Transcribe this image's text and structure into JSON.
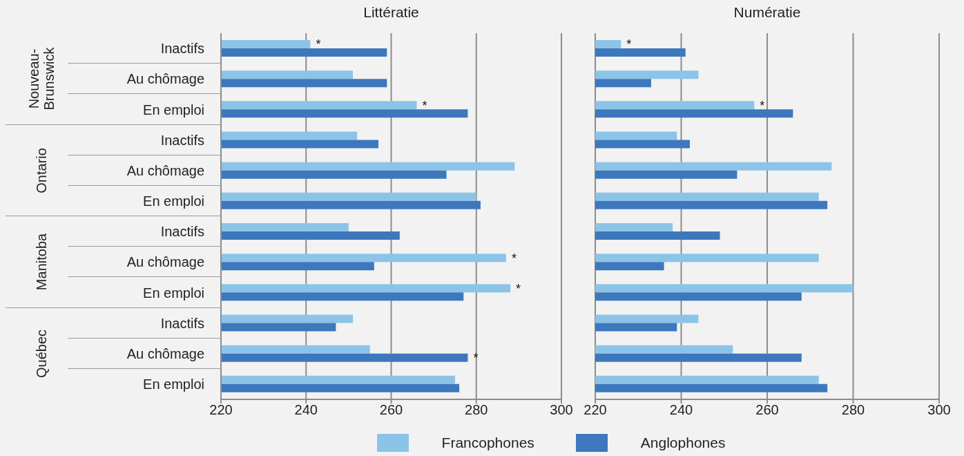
{
  "chart_data": [
    {
      "type": "bar",
      "orientation": "horizontal",
      "title": "Littératie",
      "categories": [
        "Inactifs",
        "Au chômage",
        "En emploi",
        "Inactifs",
        "Au chômage",
        "En emploi",
        "Inactifs",
        "Au chômage",
        "En emploi",
        "Inactifs",
        "Au chômage",
        "En emploi"
      ],
      "series": [
        {
          "name": "Francophones",
          "color": "#8cc4e8",
          "values": [
            241,
            251,
            266,
            252,
            289,
            280,
            250,
            287,
            288,
            251,
            255,
            275
          ],
          "value_labels": [
            "*",
            null,
            "*",
            null,
            null,
            null,
            null,
            "*",
            "*",
            null,
            null,
            null
          ]
        },
        {
          "name": "Anglophones",
          "color": "#3d78bd",
          "values": [
            259,
            259,
            278,
            257,
            273,
            281,
            262,
            256,
            277,
            247,
            278,
            276
          ],
          "value_labels": [
            null,
            null,
            null,
            null,
            null,
            null,
            null,
            null,
            null,
            null,
            "*",
            null
          ]
        }
      ],
      "xlim": [
        220,
        300
      ],
      "xticks": [
        220,
        240,
        260,
        280,
        300
      ],
      "grid": "x",
      "legend": "bottom",
      "annotations": [
        "Nouveau-Brunswick",
        "Ontario",
        "Manitoba",
        "Québec"
      ]
    },
    {
      "type": "bar",
      "orientation": "horizontal",
      "title": "Numératie",
      "categories": [
        null,
        null,
        null,
        null,
        null,
        null,
        null,
        null,
        null,
        null,
        null,
        null
      ],
      "series": [
        {
          "color": "#8cc4e8",
          "values": [
            226,
            244,
            257,
            239,
            275,
            272,
            238,
            272,
            280,
            244,
            252,
            272
          ],
          "value_labels": [
            "*",
            null,
            "*",
            null,
            null,
            null,
            null,
            null,
            null,
            null,
            null,
            null
          ]
        },
        {
          "color": "#3d78bd",
          "values": [
            241,
            233,
            266,
            242,
            253,
            274,
            249,
            236,
            268,
            239,
            268,
            274
          ],
          "value_labels": [
            null,
            null,
            null,
            null,
            null,
            null,
            null,
            null,
            null,
            null,
            null,
            null
          ]
        }
      ],
      "xlim": [
        220,
        300
      ],
      "xticks": [
        220,
        240,
        260,
        280,
        300
      ],
      "grid": "x",
      "tick_labels": "x"
    }
  ]
}
